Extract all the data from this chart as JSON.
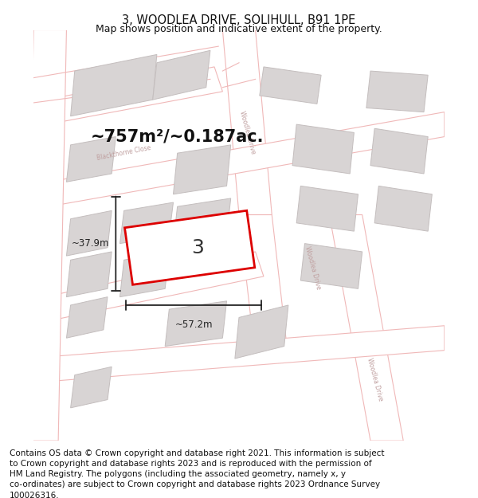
{
  "title": "3, WOODLEA DRIVE, SOLIHULL, B91 1PE",
  "subtitle": "Map shows position and indicative extent of the property.",
  "area_text": "~757m²/~0.187ac.",
  "width_label": "~57.2m",
  "height_label": "~37.9m",
  "plot_number": "3",
  "bg_color": "#ffffff",
  "map_bg": "#ffffff",
  "road_color": "#f0b8b8",
  "building_color": "#d8d4d4",
  "building_edge": "#c8c0c0",
  "plot_edge_color": "#dd0000",
  "footer_text": "Contains OS data © Crown copyright and database right 2021. This information is subject to Crown copyright and database rights 2023 and is reproduced with the permission of HM Land Registry. The polygons (including the associated geometry, namely x, y co-ordinates) are subject to Crown copyright and database rights 2023 Ordnance Survey 100026316.",
  "title_fontsize": 10.5,
  "subtitle_fontsize": 9,
  "area_fontsize": 17,
  "footer_fontsize": 7.5,
  "street_label_color": "#c0a0a0",
  "dim_color": "#222222"
}
